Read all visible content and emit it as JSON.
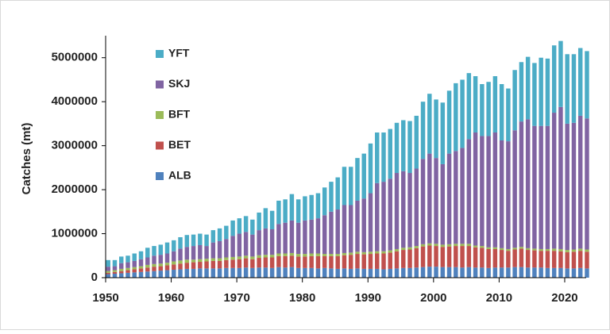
{
  "chart_data": {
    "type": "stacked_bar",
    "y_label": "Catches (mt)",
    "x": [
      1950,
      1951,
      1952,
      1953,
      1954,
      1955,
      1956,
      1957,
      1958,
      1959,
      1960,
      1961,
      1962,
      1963,
      1964,
      1965,
      1966,
      1967,
      1968,
      1969,
      1970,
      1971,
      1972,
      1973,
      1974,
      1975,
      1976,
      1977,
      1978,
      1979,
      1980,
      1981,
      1982,
      1983,
      1984,
      1985,
      1986,
      1987,
      1988,
      1989,
      1990,
      1991,
      1992,
      1993,
      1994,
      1995,
      1996,
      1997,
      1998,
      1999,
      2000,
      2001,
      2002,
      2003,
      2004,
      2005,
      2006,
      2007,
      2008,
      2009,
      2010,
      2011,
      2012,
      2013,
      2014,
      2015,
      2016,
      2017,
      2018,
      2019,
      2020,
      2021,
      2022,
      2023
    ],
    "xlim": [
      1950,
      2024
    ],
    "xticks": [
      1950,
      1960,
      1970,
      1980,
      1990,
      2000,
      2010,
      2020
    ],
    "ylim": [
      0,
      5500000
    ],
    "yticks": [
      0,
      1000000,
      2000000,
      3000000,
      4000000,
      5000000
    ],
    "grid": false,
    "legend": "top-left",
    "series": [
      {
        "name": "ALB",
        "color": "#4f81bd",
        "values": [
          80000,
          90000,
          100000,
          110000,
          120000,
          130000,
          140000,
          150000,
          160000,
          170000,
          180000,
          190000,
          200000,
          200000,
          210000,
          210000,
          210000,
          210000,
          220000,
          220000,
          220000,
          230000,
          220000,
          230000,
          230000,
          220000,
          240000,
          230000,
          240000,
          220000,
          220000,
          220000,
          210000,
          220000,
          210000,
          200000,
          210000,
          200000,
          210000,
          200000,
          200000,
          200000,
          190000,
          200000,
          210000,
          220000,
          220000,
          230000,
          240000,
          250000,
          250000,
          240000,
          240000,
          240000,
          230000,
          240000,
          230000,
          230000,
          220000,
          230000,
          230000,
          230000,
          240000,
          240000,
          230000,
          230000,
          230000,
          220000,
          220000,
          220000,
          210000,
          210000,
          220000,
          210000
        ]
      },
      {
        "name": "BET",
        "color": "#c0504d",
        "values": [
          30000,
          40000,
          50000,
          60000,
          70000,
          80000,
          90000,
          100000,
          100000,
          110000,
          120000,
          130000,
          140000,
          150000,
          150000,
          160000,
          170000,
          170000,
          180000,
          190000,
          200000,
          210000,
          200000,
          220000,
          230000,
          240000,
          250000,
          260000,
          260000,
          260000,
          260000,
          270000,
          280000,
          270000,
          280000,
          290000,
          300000,
          320000,
          330000,
          330000,
          340000,
          350000,
          360000,
          370000,
          390000,
          410000,
          420000,
          440000,
          470000,
          480000,
          470000,
          460000,
          470000,
          480000,
          490000,
          480000,
          460000,
          450000,
          430000,
          420000,
          400000,
          380000,
          400000,
          420000,
          400000,
          390000,
          380000,
          390000,
          390000,
          380000,
          370000,
          380000,
          390000,
          380000
        ]
      },
      {
        "name": "BFT",
        "color": "#9bbb59",
        "values": [
          40000,
          40000,
          50000,
          50000,
          50000,
          50000,
          60000,
          60000,
          60000,
          60000,
          70000,
          70000,
          70000,
          60000,
          60000,
          60000,
          60000,
          60000,
          60000,
          60000,
          60000,
          60000,
          60000,
          60000,
          60000,
          60000,
          60000,
          60000,
          60000,
          60000,
          60000,
          60000,
          60000,
          50000,
          50000,
          50000,
          50000,
          50000,
          50000,
          50000,
          50000,
          50000,
          50000,
          50000,
          50000,
          50000,
          50000,
          50000,
          50000,
          50000,
          50000,
          50000,
          50000,
          50000,
          50000,
          50000,
          40000,
          40000,
          40000,
          40000,
          40000,
          40000,
          40000,
          40000,
          40000,
          40000,
          40000,
          40000,
          50000,
          50000,
          50000,
          50000,
          50000,
          50000
        ]
      },
      {
        "name": "SKJ",
        "color": "#8064a2",
        "values": [
          100000,
          90000,
          130000,
          130000,
          140000,
          160000,
          170000,
          190000,
          200000,
          210000,
          230000,
          270000,
          290000,
          310000,
          320000,
          290000,
          360000,
          390000,
          420000,
          480000,
          520000,
          540000,
          500000,
          570000,
          600000,
          580000,
          670000,
          700000,
          740000,
          710000,
          760000,
          770000,
          800000,
          880000,
          960000,
          1010000,
          1090000,
          1080000,
          1160000,
          1220000,
          1330000,
          1550000,
          1580000,
          1630000,
          1730000,
          1740000,
          1690000,
          1760000,
          1940000,
          2040000,
          1950000,
          1830000,
          2060000,
          2110000,
          2180000,
          2380000,
          2570000,
          2500000,
          2530000,
          2610000,
          2450000,
          2450000,
          2670000,
          2850000,
          2930000,
          2790000,
          2800000,
          2800000,
          3090000,
          3230000,
          2870000,
          2880000,
          3020000,
          2980000
        ]
      },
      {
        "name": "YFT",
        "color": "#4bacc6",
        "values": [
          150000,
          140000,
          150000,
          150000,
          170000,
          180000,
          220000,
          220000,
          230000,
          250000,
          250000,
          260000,
          270000,
          260000,
          260000,
          260000,
          280000,
          290000,
          300000,
          350000,
          350000,
          360000,
          340000,
          400000,
          460000,
          420000,
          530000,
          530000,
          600000,
          530000,
          550000,
          560000,
          570000,
          630000,
          680000,
          730000,
          870000,
          870000,
          970000,
          1020000,
          1130000,
          1150000,
          1120000,
          1130000,
          1140000,
          1160000,
          1180000,
          1200000,
          1300000,
          1360000,
          1330000,
          1400000,
          1430000,
          1540000,
          1550000,
          1500000,
          1280000,
          1180000,
          1230000,
          1280000,
          1280000,
          1200000,
          1370000,
          1350000,
          1420000,
          1430000,
          1550000,
          1530000,
          1530000,
          1500000,
          1580000,
          1560000,
          1540000,
          1530000
        ]
      }
    ]
  }
}
